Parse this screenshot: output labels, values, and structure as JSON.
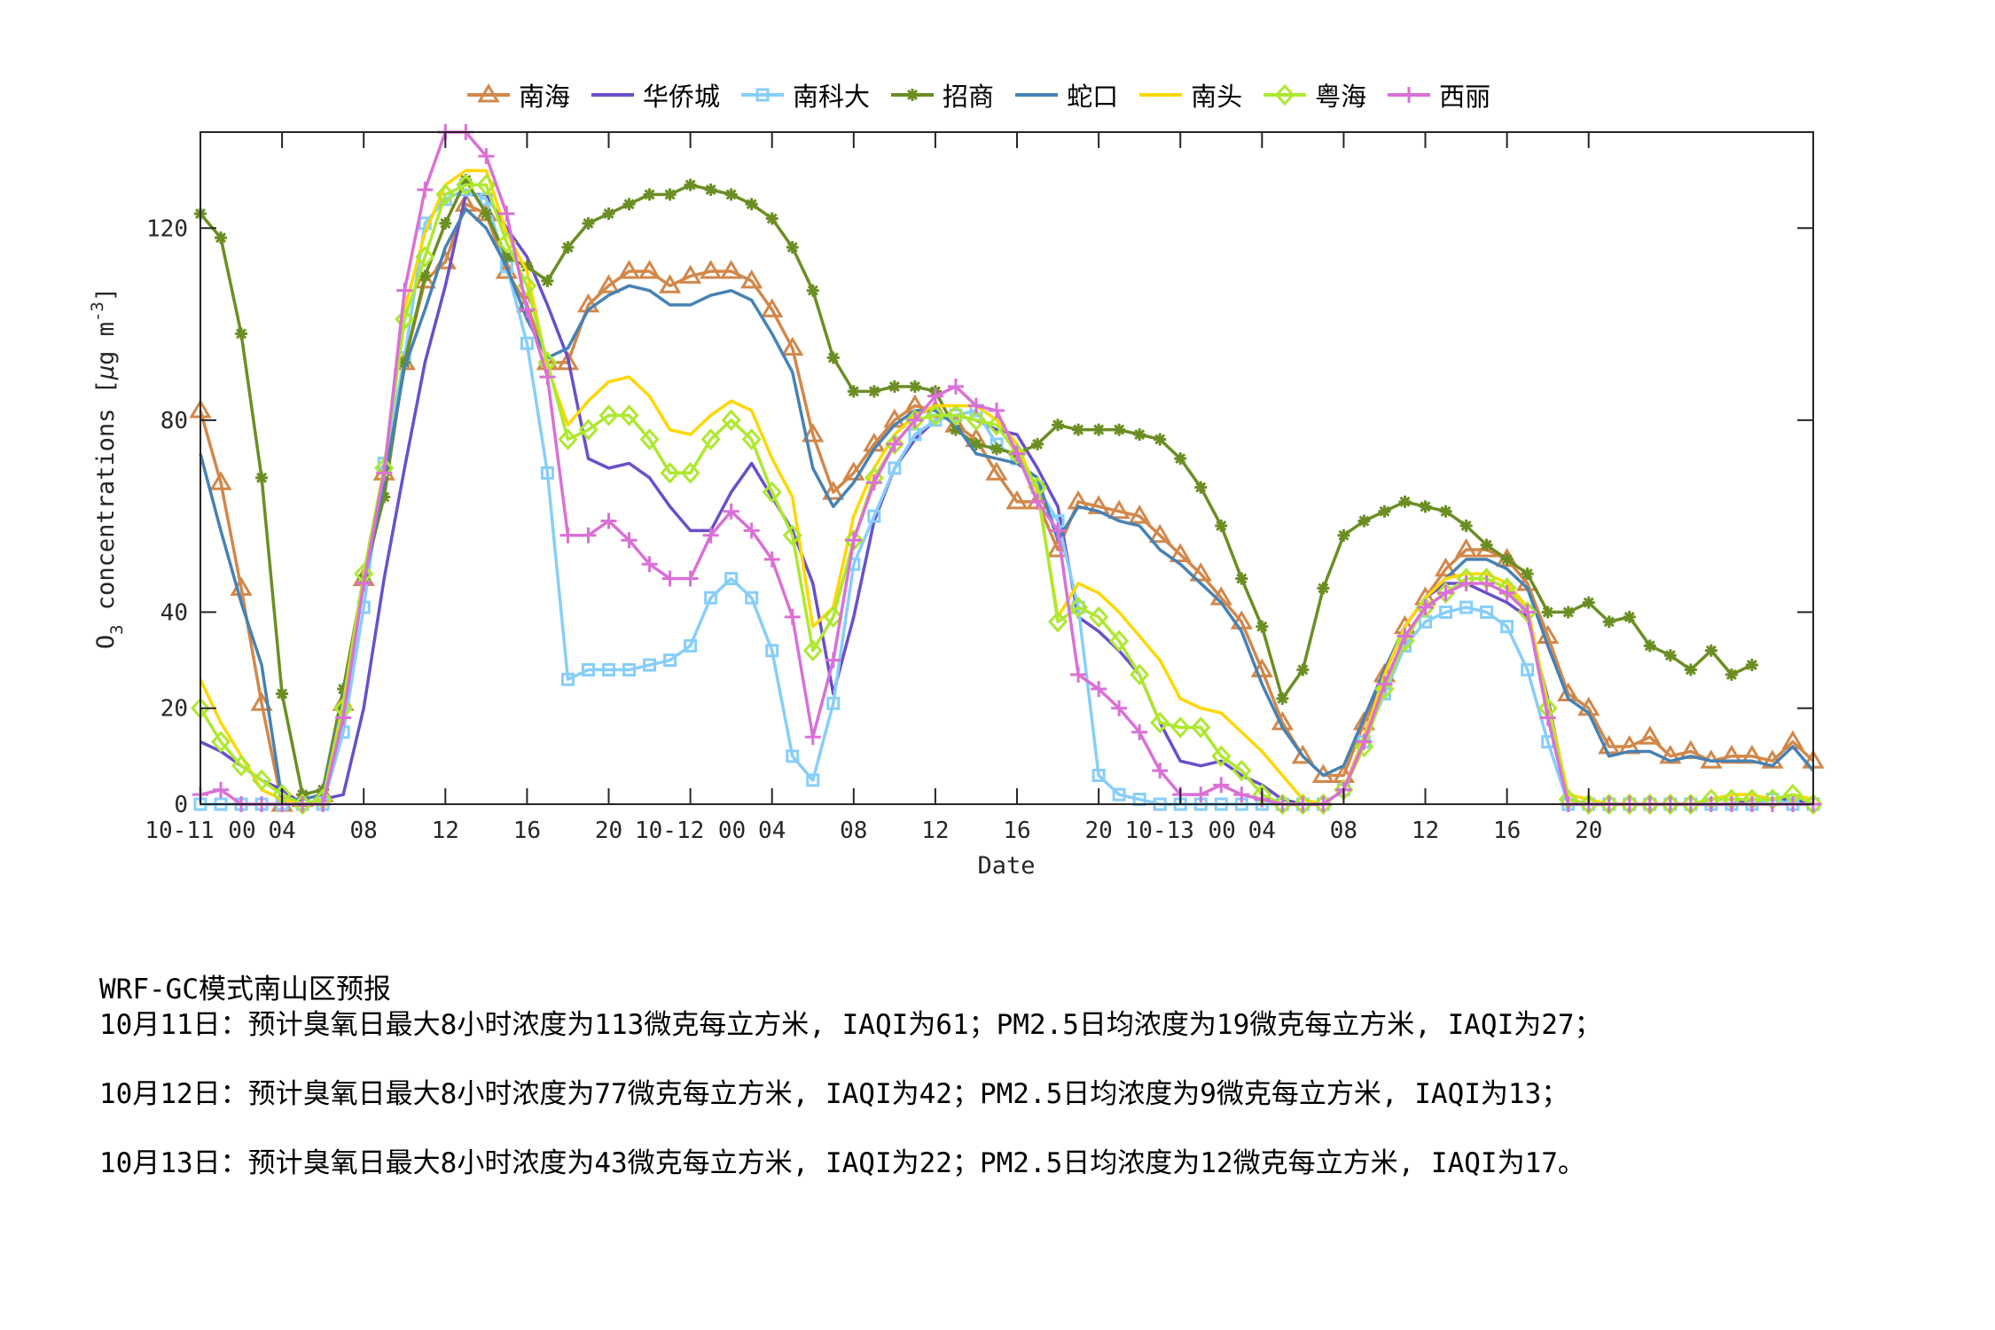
{
  "chart_data": {
    "type": "line",
    "title": "",
    "xlabel": "Date",
    "ylabel": "O3 concentrations [μg m-3]",
    "ylim": [
      0,
      140
    ],
    "xlim": [
      0,
      79
    ],
    "grid": false,
    "legend_position": "top",
    "x_unit": "hour since 2010-10-11 00:00",
    "yticks": [
      0,
      20,
      40,
      80,
      120
    ],
    "xticks": [
      {
        "x": 0,
        "label": "10-11 00"
      },
      {
        "x": 4,
        "label": "04"
      },
      {
        "x": 8,
        "label": "08"
      },
      {
        "x": 12,
        "label": "12"
      },
      {
        "x": 16,
        "label": "16"
      },
      {
        "x": 20,
        "label": "20"
      },
      {
        "x": 24,
        "label": "10-12 00"
      },
      {
        "x": 28,
        "label": "04"
      },
      {
        "x": 32,
        "label": "08"
      },
      {
        "x": 36,
        "label": "12"
      },
      {
        "x": 40,
        "label": "16"
      },
      {
        "x": 44,
        "label": "20"
      },
      {
        "x": 48,
        "label": "10-13 00"
      },
      {
        "x": 52,
        "label": "04"
      },
      {
        "x": 56,
        "label": "08"
      },
      {
        "x": 60,
        "label": "12"
      },
      {
        "x": 64,
        "label": "16"
      },
      {
        "x": 68,
        "label": "20"
      }
    ],
    "series": [
      {
        "name": "南海",
        "color": "#D2874A",
        "marker": "triangle",
        "values": [
          82,
          67,
          45,
          21,
          0,
          1,
          2,
          21,
          47,
          69,
          92,
          109,
          113,
          125,
          123,
          111,
          104,
          92,
          92,
          104,
          108,
          111,
          111,
          108,
          110,
          111,
          111,
          109,
          103,
          95,
          77,
          65,
          69,
          75,
          80,
          83,
          82,
          79,
          76,
          69,
          63,
          63,
          53,
          63,
          62,
          61,
          60,
          56,
          52,
          48,
          43,
          38,
          28,
          17,
          10,
          6,
          6,
          17,
          27,
          37,
          43,
          49,
          53,
          53,
          51,
          46,
          35,
          23,
          20,
          12,
          12,
          14,
          10,
          11,
          9,
          10,
          10,
          9,
          13,
          9,
          15
        ]
      },
      {
        "name": "华侨城",
        "color": "#6A4FCB",
        "marker": "none",
        "values": [
          13,
          11,
          8,
          5,
          3,
          0,
          1,
          2,
          20,
          47,
          70,
          92,
          108,
          127,
          127,
          120,
          114,
          104,
          93,
          72,
          70,
          71,
          68,
          62,
          57,
          57,
          65,
          71,
          64,
          57,
          46,
          23,
          39,
          59,
          70,
          76,
          80,
          81,
          80,
          78,
          77,
          70,
          62,
          39,
          36,
          32,
          27,
          17,
          9,
          8,
          9,
          6,
          4,
          1,
          0,
          0,
          3,
          14,
          28,
          37,
          43,
          46,
          46,
          44,
          42,
          39,
          22,
          1,
          0,
          0,
          0,
          0,
          0,
          0,
          0,
          0,
          1,
          1,
          1,
          0,
          9
        ]
      },
      {
        "name": "南科大",
        "color": "#87CEFA",
        "marker": "square",
        "values": [
          0,
          0,
          0,
          0,
          0,
          0,
          0,
          15,
          41,
          71,
          93,
          121,
          126,
          128,
          126,
          112,
          96,
          69,
          26,
          28,
          28,
          28,
          29,
          30,
          33,
          43,
          47,
          43,
          32,
          10,
          5,
          21,
          50,
          60,
          70,
          77,
          80,
          81,
          82,
          75,
          72,
          66,
          59,
          41,
          6,
          2,
          1,
          0,
          0,
          0,
          0,
          0,
          0,
          0,
          0,
          0,
          3,
          13,
          23,
          33,
          38,
          40,
          41,
          40,
          37,
          28,
          13,
          0,
          0,
          0,
          0,
          0,
          0,
          0,
          0,
          0,
          0,
          1,
          0,
          0,
          9
        ]
      },
      {
        "name": "招商",
        "color": "#6B8E23",
        "marker": "star",
        "values": [
          123,
          118,
          98,
          68,
          23,
          2,
          3,
          24,
          47,
          64,
          92,
          110,
          121,
          130,
          123,
          114,
          112,
          109,
          116,
          121,
          123,
          125,
          127,
          127,
          129,
          128,
          127,
          125,
          122,
          116,
          107,
          93,
          86,
          86,
          87,
          87,
          86,
          78,
          75,
          74,
          73,
          75,
          79,
          78,
          78,
          78,
          77,
          76,
          72,
          66,
          58,
          47,
          37,
          22,
          28,
          45,
          56,
          59,
          61,
          63,
          62,
          61,
          58,
          54,
          51,
          48,
          40,
          40,
          42,
          38,
          39,
          33,
          31,
          28,
          32,
          27,
          29
        ]
      },
      {
        "name": "蛇口",
        "color": "#4682B4",
        "marker": "none",
        "values": [
          73,
          57,
          42,
          29,
          1,
          1,
          2,
          22,
          46,
          67,
          91,
          103,
          116,
          124,
          120,
          112,
          101,
          93,
          95,
          103,
          106,
          108,
          107,
          104,
          104,
          106,
          107,
          105,
          98,
          90,
          70,
          62,
          67,
          74,
          79,
          82,
          82,
          79,
          73,
          72,
          71,
          68,
          55,
          62,
          61,
          59,
          58,
          53,
          50,
          46,
          42,
          36,
          25,
          16,
          10,
          6,
          8,
          18,
          28,
          37,
          43,
          47,
          51,
          51,
          49,
          45,
          33,
          22,
          19,
          10,
          11,
          11,
          9,
          10,
          9,
          9,
          9,
          8,
          12,
          7,
          14
        ]
      },
      {
        "name": "南头",
        "color": "#FFD700",
        "marker": "none",
        "values": [
          26,
          17,
          10,
          3,
          1,
          0,
          1,
          21,
          48,
          70,
          103,
          119,
          129,
          132,
          132,
          119,
          111,
          91,
          79,
          84,
          88,
          89,
          85,
          78,
          77,
          81,
          84,
          82,
          72,
          64,
          37,
          41,
          60,
          70,
          77,
          81,
          83,
          83,
          83,
          80,
          75,
          65,
          39,
          46,
          44,
          40,
          35,
          30,
          22,
          20,
          19,
          15,
          11,
          6,
          1,
          0,
          3,
          14,
          27,
          37,
          43,
          47,
          48,
          48,
          46,
          41,
          21,
          2,
          1,
          0,
          0,
          0,
          0,
          0,
          1,
          2,
          2,
          1,
          2,
          1,
          10
        ]
      },
      {
        "name": "粤海",
        "color": "#ADE82F",
        "marker": "diamond",
        "values": [
          20,
          13,
          8,
          5,
          2,
          0,
          1,
          20,
          48,
          70,
          101,
          114,
          127,
          129,
          129,
          117,
          108,
          92,
          76,
          78,
          81,
          81,
          76,
          69,
          69,
          76,
          80,
          76,
          65,
          56,
          32,
          39,
          55,
          68,
          75,
          80,
          81,
          81,
          80,
          79,
          73,
          66,
          38,
          41,
          39,
          34,
          27,
          17,
          16,
          16,
          10,
          7,
          2,
          0,
          0,
          0,
          3,
          12,
          24,
          34,
          41,
          44,
          47,
          47,
          45,
          40,
          20,
          1,
          0,
          0,
          0,
          0,
          0,
          0,
          1,
          1,
          1,
          1,
          2,
          0,
          9
        ]
      },
      {
        "name": "西丽",
        "color": "#DA70D6",
        "marker": "plus",
        "values": [
          2,
          3,
          0,
          0,
          0,
          0,
          0,
          18,
          46,
          69,
          107,
          128,
          140,
          140,
          135,
          123,
          103,
          89,
          56,
          56,
          59,
          55,
          50,
          47,
          47,
          56,
          61,
          57,
          51,
          39,
          14,
          30,
          55,
          67,
          75,
          80,
          85,
          87,
          83,
          82,
          73,
          63,
          57,
          27,
          24,
          20,
          15,
          7,
          2,
          2,
          4,
          2,
          1,
          0,
          0,
          0,
          3,
          13,
          25,
          35,
          41,
          44,
          46,
          46,
          44,
          40,
          18,
          0,
          0,
          0,
          0,
          0,
          0,
          0,
          0,
          0,
          0,
          0,
          0,
          0,
          9
        ]
      }
    ]
  },
  "legend": {
    "items": [
      {
        "label": "南海"
      },
      {
        "label": "华侨城"
      },
      {
        "label": "南科大"
      },
      {
        "label": "招商"
      },
      {
        "label": "蛇口"
      },
      {
        "label": "南头"
      },
      {
        "label": "粤海"
      },
      {
        "label": "西丽"
      }
    ]
  },
  "forecast": {
    "heading": "WRF-GC模式南山区预报",
    "lines": [
      "10月11日：预计臭氧日最大8小时浓度为113微克每立方米, IAQI为61；PM2.5日均浓度为19微克每立方米, IAQI为27；",
      "10月12日：预计臭氧日最大8小时浓度为77微克每立方米, IAQI为42；PM2.5日均浓度为9微克每立方米, IAQI为13；",
      "10月13日：预计臭氧日最大8小时浓度为43微克每立方米, IAQI为22；PM2.5日均浓度为12微克每立方米, IAQI为17。"
    ]
  }
}
